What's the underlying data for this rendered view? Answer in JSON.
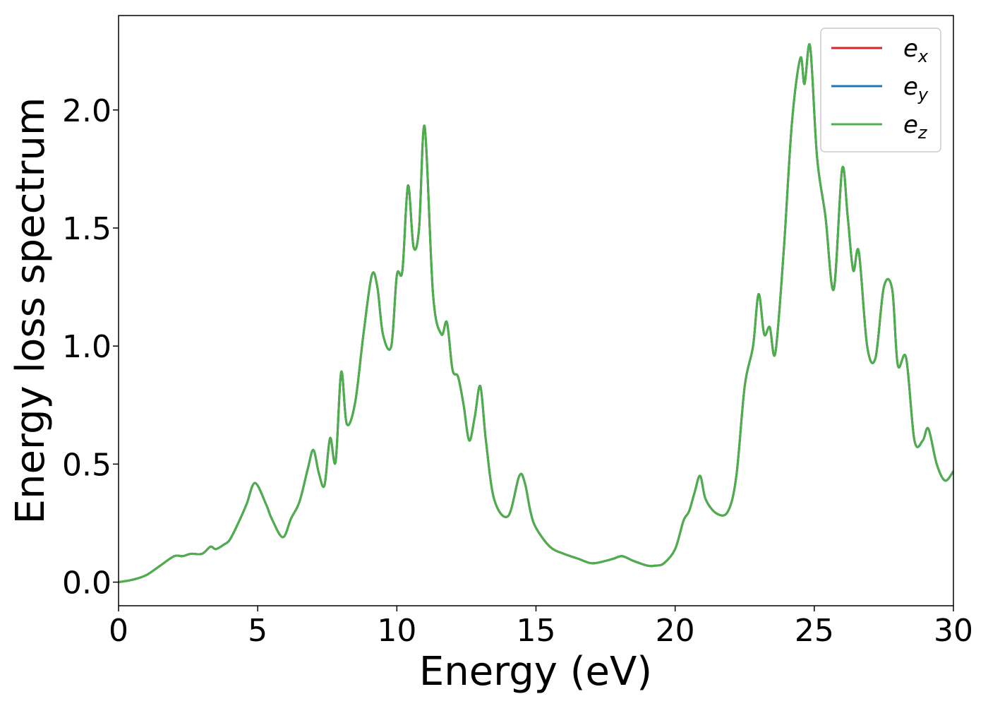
{
  "chart_data": {
    "type": "line",
    "title": "",
    "xlabel": "Energy (eV)",
    "ylabel": "Energy loss spectrum",
    "xlim": [
      0,
      30
    ],
    "ylim": [
      -0.1,
      2.4
    ],
    "xticks": [
      0,
      5,
      10,
      15,
      20,
      25,
      30
    ],
    "yticks": [
      0.0,
      0.5,
      1.0,
      1.5,
      2.0
    ],
    "xtick_labels": [
      "0",
      "5",
      "10",
      "15",
      "20",
      "25",
      "30"
    ],
    "ytick_labels": [
      "0.0",
      "0.5",
      "1.0",
      "1.5",
      "2.0"
    ],
    "grid": false,
    "legend_position": "top-right",
    "x": [
      0,
      0.5,
      1.0,
      1.5,
      2.0,
      2.3,
      2.6,
      3.0,
      3.3,
      3.5,
      3.8,
      4.0,
      4.3,
      4.6,
      4.9,
      5.3,
      5.5,
      5.9,
      6.2,
      6.5,
      6.8,
      7.0,
      7.2,
      7.4,
      7.6,
      7.8,
      8.0,
      8.2,
      8.5,
      8.8,
      9.1,
      9.3,
      9.5,
      9.8,
      10.0,
      10.2,
      10.4,
      10.6,
      10.8,
      11.0,
      11.3,
      11.6,
      11.8,
      12.0,
      12.2,
      12.4,
      12.6,
      12.8,
      13.0,
      13.2,
      13.5,
      14.0,
      14.4,
      14.6,
      14.8,
      15.0,
      15.5,
      16.0,
      16.5,
      17.0,
      17.5,
      17.8,
      18.1,
      18.5,
      19.0,
      19.3,
      19.6,
      20.0,
      20.3,
      20.5,
      20.7,
      20.9,
      21.1,
      21.5,
      21.9,
      22.2,
      22.5,
      22.8,
      23.0,
      23.2,
      23.4,
      23.6,
      23.9,
      24.2,
      24.5,
      24.65,
      24.85,
      25.1,
      25.4,
      25.7,
      26.0,
      26.2,
      26.4,
      26.6,
      26.9,
      27.2,
      27.5,
      27.8,
      28.0,
      28.3,
      28.6,
      28.9,
      29.1,
      29.4,
      29.7,
      30.0
    ],
    "series": [
      {
        "name": "e_x",
        "color": "#d62728",
        "values": [
          0.0,
          0.01,
          0.03,
          0.07,
          0.11,
          0.11,
          0.12,
          0.12,
          0.15,
          0.14,
          0.16,
          0.18,
          0.25,
          0.33,
          0.42,
          0.33,
          0.27,
          0.19,
          0.27,
          0.34,
          0.48,
          0.56,
          0.46,
          0.41,
          0.61,
          0.51,
          0.89,
          0.67,
          0.76,
          1.05,
          1.3,
          1.25,
          1.05,
          1.0,
          1.3,
          1.32,
          1.68,
          1.42,
          1.5,
          1.93,
          1.22,
          1.05,
          1.1,
          0.9,
          0.87,
          0.75,
          0.6,
          0.7,
          0.83,
          0.6,
          0.35,
          0.28,
          0.45,
          0.42,
          0.3,
          0.23,
          0.15,
          0.12,
          0.1,
          0.08,
          0.09,
          0.1,
          0.11,
          0.09,
          0.07,
          0.07,
          0.08,
          0.14,
          0.26,
          0.3,
          0.38,
          0.45,
          0.35,
          0.29,
          0.3,
          0.45,
          0.83,
          1.0,
          1.22,
          1.05,
          1.08,
          0.97,
          1.4,
          1.95,
          2.22,
          2.11,
          2.27,
          1.8,
          1.55,
          1.24,
          1.75,
          1.55,
          1.32,
          1.4,
          1.0,
          0.95,
          1.25,
          1.24,
          0.92,
          0.95,
          0.6,
          0.6,
          0.65,
          0.5,
          0.43,
          0.47
        ]
      },
      {
        "name": "e_y",
        "color": "#1f77b4",
        "values": [
          0.0,
          0.01,
          0.03,
          0.07,
          0.11,
          0.11,
          0.12,
          0.12,
          0.15,
          0.14,
          0.16,
          0.18,
          0.25,
          0.33,
          0.42,
          0.33,
          0.27,
          0.19,
          0.27,
          0.34,
          0.48,
          0.56,
          0.46,
          0.41,
          0.61,
          0.51,
          0.89,
          0.67,
          0.76,
          1.05,
          1.3,
          1.25,
          1.05,
          1.0,
          1.3,
          1.32,
          1.68,
          1.42,
          1.5,
          1.93,
          1.22,
          1.05,
          1.1,
          0.9,
          0.87,
          0.75,
          0.6,
          0.7,
          0.83,
          0.6,
          0.35,
          0.28,
          0.45,
          0.42,
          0.3,
          0.23,
          0.15,
          0.12,
          0.1,
          0.08,
          0.09,
          0.1,
          0.11,
          0.09,
          0.07,
          0.07,
          0.08,
          0.14,
          0.26,
          0.3,
          0.38,
          0.45,
          0.35,
          0.29,
          0.3,
          0.45,
          0.83,
          1.0,
          1.22,
          1.05,
          1.08,
          0.97,
          1.4,
          1.95,
          2.22,
          2.11,
          2.27,
          1.8,
          1.55,
          1.24,
          1.75,
          1.55,
          1.32,
          1.4,
          1.0,
          0.95,
          1.25,
          1.24,
          0.92,
          0.95,
          0.6,
          0.6,
          0.65,
          0.5,
          0.43,
          0.47
        ]
      },
      {
        "name": "e_z",
        "color": "#4daf4a",
        "values": [
          0.0,
          0.01,
          0.03,
          0.07,
          0.11,
          0.11,
          0.12,
          0.12,
          0.15,
          0.14,
          0.16,
          0.18,
          0.25,
          0.33,
          0.42,
          0.33,
          0.27,
          0.19,
          0.27,
          0.34,
          0.48,
          0.56,
          0.46,
          0.41,
          0.61,
          0.51,
          0.89,
          0.67,
          0.76,
          1.05,
          1.3,
          1.25,
          1.05,
          1.0,
          1.3,
          1.32,
          1.68,
          1.42,
          1.5,
          1.93,
          1.22,
          1.05,
          1.1,
          0.9,
          0.87,
          0.75,
          0.6,
          0.7,
          0.83,
          0.6,
          0.35,
          0.28,
          0.45,
          0.42,
          0.3,
          0.23,
          0.15,
          0.12,
          0.1,
          0.08,
          0.09,
          0.1,
          0.11,
          0.09,
          0.07,
          0.07,
          0.08,
          0.14,
          0.26,
          0.3,
          0.38,
          0.45,
          0.35,
          0.29,
          0.3,
          0.45,
          0.83,
          1.0,
          1.22,
          1.05,
          1.08,
          0.97,
          1.4,
          1.95,
          2.22,
          2.11,
          2.27,
          1.8,
          1.55,
          1.24,
          1.75,
          1.55,
          1.32,
          1.4,
          1.0,
          0.95,
          1.25,
          1.24,
          0.92,
          0.95,
          0.6,
          0.6,
          0.65,
          0.5,
          0.43,
          0.47
        ]
      }
    ],
    "legend": [
      {
        "base": "e",
        "sub": "x",
        "color": "#d62728"
      },
      {
        "base": "e",
        "sub": "y",
        "color": "#1f77b4"
      },
      {
        "base": "e",
        "sub": "z",
        "color": "#4daf4a"
      }
    ]
  }
}
